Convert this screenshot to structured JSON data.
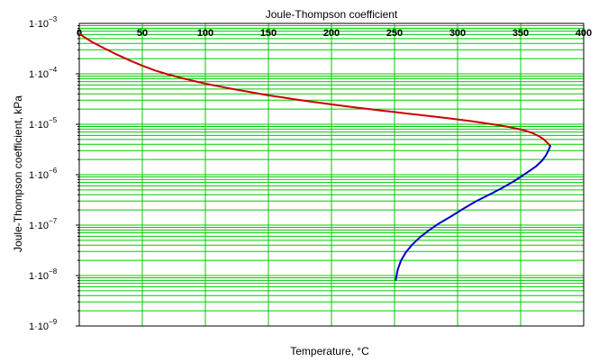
{
  "chart_data": {
    "type": "line",
    "title": "Joule-Thompson coefficient",
    "xlabel": "Temperature, °C",
    "ylabel": "Joule-Thompson coefficient, kPa",
    "x_scale": "linear",
    "y_scale": "log",
    "xlim": [
      0,
      400
    ],
    "ylim": [
      1e-09,
      0.001
    ],
    "x_ticks": [
      0,
      50,
      100,
      150,
      200,
      250,
      300,
      350,
      400
    ],
    "x_tick_labels": [
      "0",
      "50",
      "100",
      "150",
      "200",
      "250",
      "300",
      "350",
      "400"
    ],
    "y_ticks": [
      {
        "value": 0.001,
        "base": "1·10",
        "exp": "−3"
      },
      {
        "value": 0.0001,
        "base": "1·10",
        "exp": "−4"
      },
      {
        "value": 1e-05,
        "base": "1·10",
        "exp": "−5"
      },
      {
        "value": 1e-06,
        "base": "1·10",
        "exp": "−6"
      },
      {
        "value": 1e-07,
        "base": "1·10",
        "exp": "−7"
      },
      {
        "value": 1e-08,
        "base": "1·10",
        "exp": "−8"
      },
      {
        "value": 1e-09,
        "base": "1·10",
        "exp": "−9"
      }
    ],
    "grid": true,
    "legend": "none",
    "colors": {
      "background": "#ffffff",
      "grid": "#00cc00",
      "frame": "#000000"
    },
    "series": [
      {
        "color": "#cc0000",
        "x": [
          0,
          10,
          20,
          30,
          40,
          50,
          60,
          70,
          80,
          90,
          100,
          110,
          120,
          130,
          140,
          150,
          160,
          170,
          180,
          190,
          200,
          210,
          220,
          230,
          240,
          250,
          260,
          270,
          280,
          290,
          300,
          310,
          320,
          330,
          340,
          350,
          355,
          360,
          365,
          368,
          370,
          372,
          373.5
        ],
        "y": [
          0.00062,
          0.00043,
          0.00032,
          0.00024,
          0.000185,
          0.000145,
          0.000117,
          9.8e-05,
          8.4e-05,
          7.3e-05,
          6.4e-05,
          5.7e-05,
          5.1e-05,
          4.6e-05,
          4.15e-05,
          3.75e-05,
          3.45e-05,
          3.15e-05,
          2.9e-05,
          2.68e-05,
          2.48e-05,
          2.3e-05,
          2.14e-05,
          2e-05,
          1.86e-05,
          1.75e-05,
          1.63e-05,
          1.53e-05,
          1.43e-05,
          1.34e-05,
          1.25e-05,
          1.16e-05,
          1.07e-05,
          9.8e-06,
          8.9e-06,
          7.9e-06,
          7.3e-06,
          6.6e-06,
          5.7e-06,
          5.1e-06,
          4.6e-06,
          4.1e-06,
          3.7e-06
        ]
      },
      {
        "color": "#0000cc",
        "x": [
          373.5,
          372,
          370,
          367,
          362,
          355,
          345,
          335,
          325,
          315,
          305,
          295,
          285,
          277,
          270,
          264,
          259,
          255,
          252.5,
          251
        ],
        "y": [
          3.7e-06,
          3e-06,
          2.4e-06,
          1.9e-06,
          1.45e-06,
          1.1e-06,
          7.5e-07,
          5.4e-07,
          4e-07,
          3e-07,
          2.15e-07,
          1.5e-07,
          1.07e-07,
          7.8e-08,
          5.7e-08,
          4.1e-08,
          2.9e-08,
          1.95e-08,
          1.3e-08,
          8.2e-09
        ]
      }
    ]
  }
}
